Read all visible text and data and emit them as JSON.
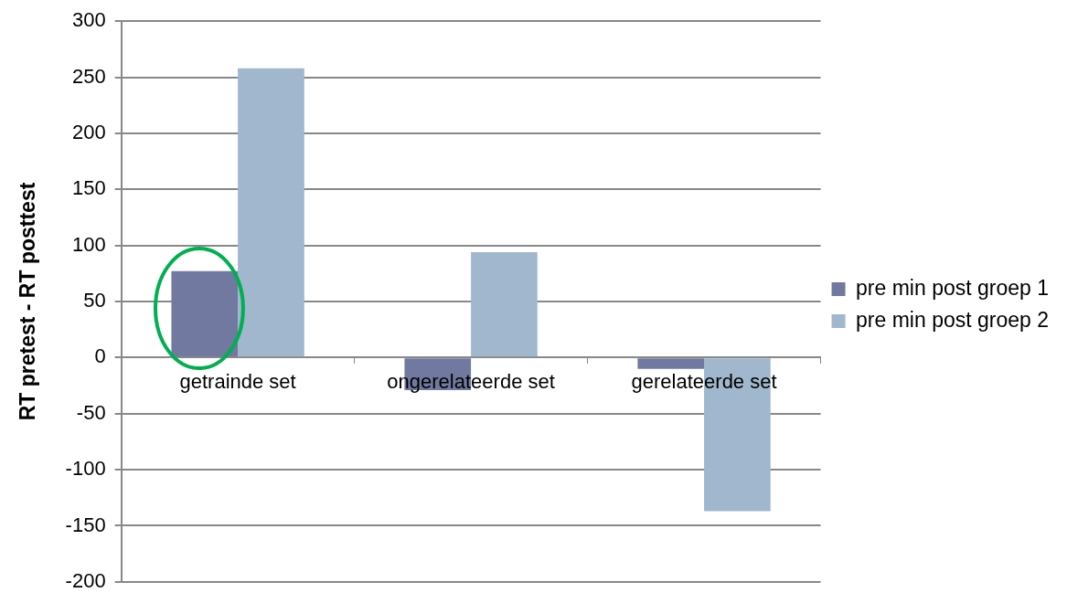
{
  "chart_data": {
    "type": "bar",
    "ylabel": "RT pretest - RT posttest",
    "categories": [
      "getrainde set",
      "ongerelateerde set",
      "gerelateerde set"
    ],
    "series": [
      {
        "name": "pre min post groep 1",
        "color": "#7179a0",
        "values": [
          77,
          -29,
          -10
        ]
      },
      {
        "name": "pre min post groep 2",
        "color": "#a0b7cd",
        "values": [
          258,
          94,
          -137
        ]
      }
    ],
    "ylim": [
      -200,
      300
    ],
    "yticks": [
      -200,
      -150,
      -100,
      -50,
      0,
      50,
      100,
      150,
      200,
      250,
      300
    ],
    "grid": "y",
    "legend": "right"
  }
}
